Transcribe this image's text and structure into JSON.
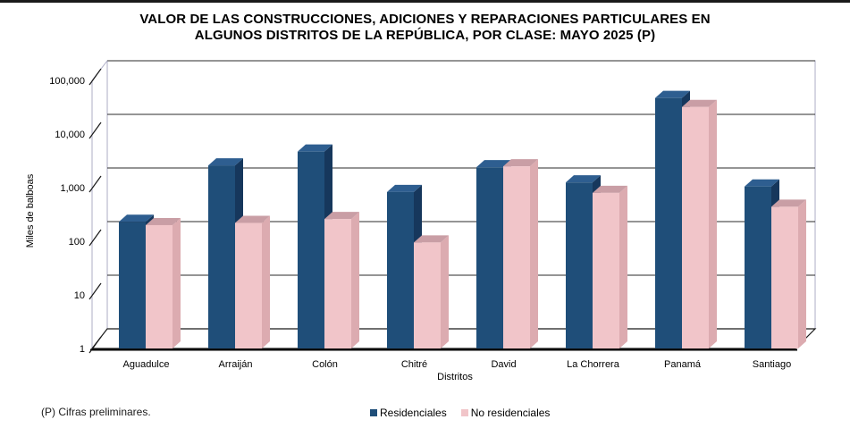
{
  "title": {
    "line1": "VALOR DE LAS CONSTRUCCIONES, ADICIONES Y REPARACIONES PARTICULARES EN",
    "line2": "ALGUNOS DISTRITOS DE LA REPÚBLICA, POR CLASE: MAYO 2025 (P)"
  },
  "footnote": "(P) Cifras preliminares.",
  "legend": {
    "residenciales": "Residenciales",
    "no_residenciales": "No residenciales"
  },
  "chart_data": {
    "type": "bar",
    "projection": "3d-column",
    "scale": "log10",
    "title": "VALOR DE LAS CONSTRUCCIONES, ADICIONES Y REPARACIONES PARTICULARES EN ALGUNOS DISTRITOS DE LA REPÚBLICA, POR CLASE: MAYO 2025 (P)",
    "xlabel": "Distritos",
    "ylabel": "Miles de balboas",
    "ylim": [
      1,
      100000
    ],
    "y_tick_labels": [
      "1",
      "10",
      "100",
      "1,000",
      "10,000",
      "100,000"
    ],
    "grid": true,
    "legend_position": "bottom-center",
    "categories": [
      "Aguadulce",
      "Arraiján",
      "Colón",
      "Chitré",
      "David",
      "La Chorrera",
      "Panamá",
      "Santiago"
    ],
    "series": [
      {
        "name": "Residenciales",
        "color": "#1F4E79",
        "cap_color": "#2E5E90",
        "side_color": "#16375C",
        "values": [
          230,
          2600,
          4700,
          830,
          2400,
          1250,
          47000,
          1050
        ]
      },
      {
        "name": "No residenciales",
        "color": "#F1C5C9",
        "cap_color": "#C99EA5",
        "side_color": "#DCABB0",
        "values": [
          200,
          220,
          260,
          95,
          2500,
          800,
          32000,
          440
        ]
      }
    ],
    "colors": {
      "gridline": "#2B2B2B",
      "wall_edge": "#ACACC6",
      "axis_edge": "#1A1A1A"
    }
  }
}
